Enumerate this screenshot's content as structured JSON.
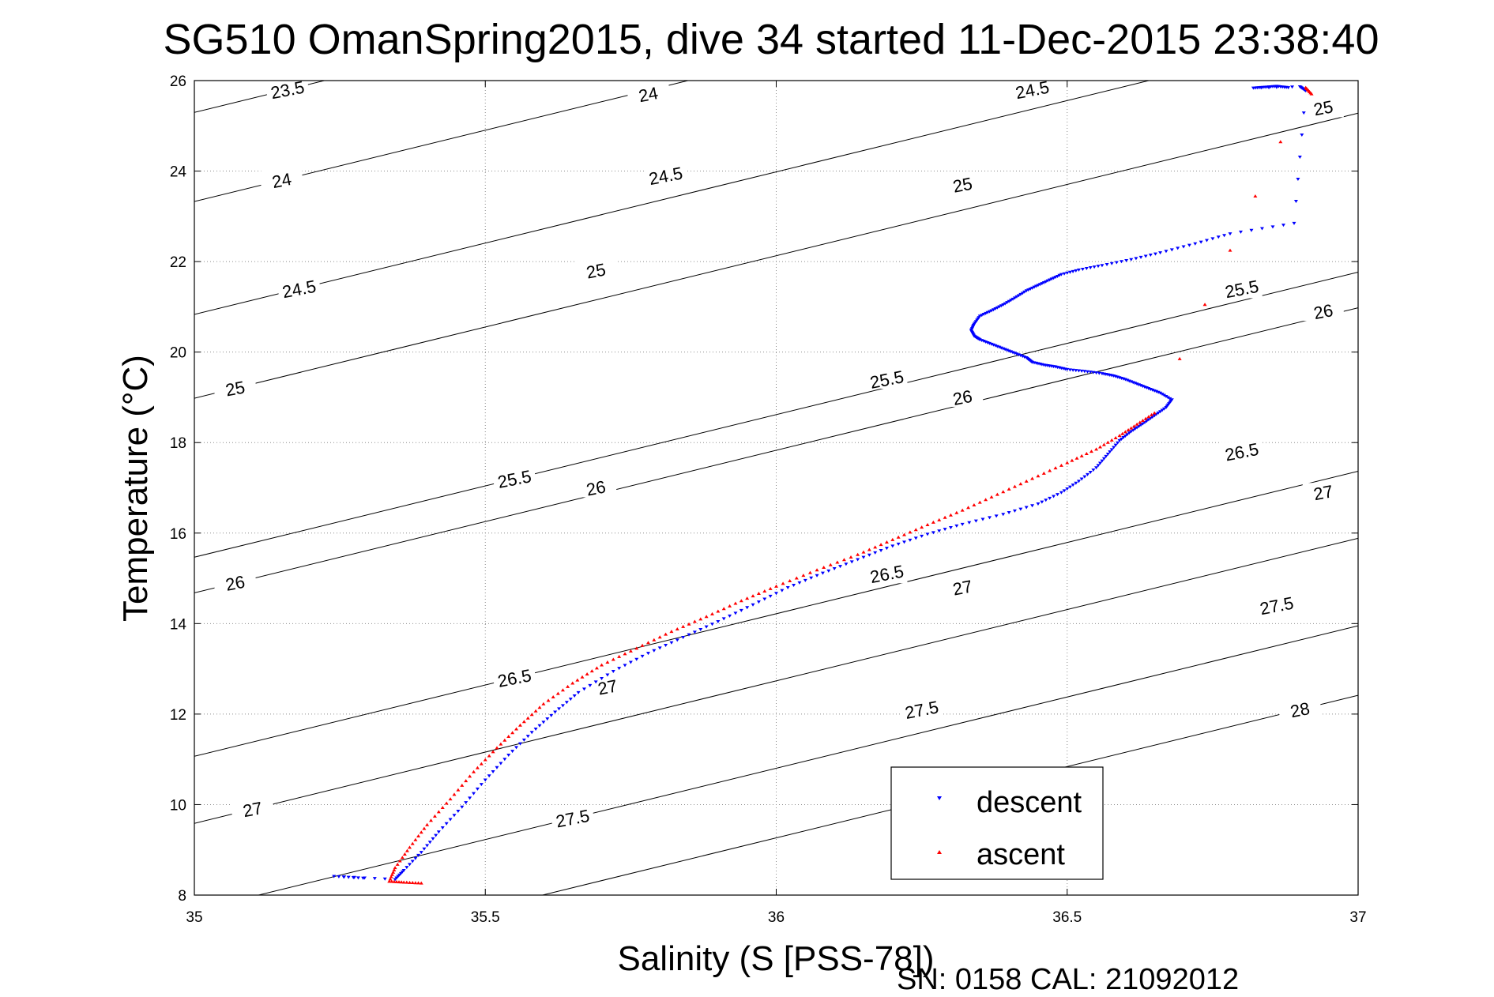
{
  "chart_data": {
    "type": "scatter",
    "title": "SG510 OmanSpring2015, dive 34 started 11-Dec-2015 23:38:40",
    "xlabel": "Salinity (S [PSS-78])",
    "ylabel": "Temperature (°C)",
    "footer": "SN: 0158  CAL: 21092012",
    "xlim": [
      35,
      37
    ],
    "ylim": [
      8,
      26
    ],
    "xticks": [
      35,
      35.5,
      36,
      36.5,
      37
    ],
    "xtick_labels": [
      "35",
      "35.5",
      "36",
      "36.5",
      "37"
    ],
    "yticks": [
      8,
      10,
      12,
      14,
      16,
      18,
      20,
      22,
      24,
      26
    ],
    "ytick_labels": [
      "8",
      "10",
      "12",
      "14",
      "16",
      "18",
      "20",
      "22",
      "24",
      "26"
    ],
    "grid": true,
    "legend_position": "bottom-right",
    "series": [
      {
        "name": "descent",
        "color": "#0000ff",
        "marker": "triangle-down",
        "points": [
          [
            36.88,
            25.85
          ],
          [
            36.86,
            25.88
          ],
          [
            36.84,
            25.86
          ],
          [
            36.82,
            25.84
          ],
          [
            36.9,
            25.87
          ],
          [
            36.91,
            25.78
          ],
          [
            36.89,
            22.85
          ],
          [
            36.78,
            22.62
          ],
          [
            36.72,
            22.4
          ],
          [
            36.66,
            22.2
          ],
          [
            36.61,
            22.05
          ],
          [
            36.56,
            21.92
          ],
          [
            36.52,
            21.82
          ],
          [
            36.49,
            21.72
          ],
          [
            36.47,
            21.6
          ],
          [
            36.45,
            21.48
          ],
          [
            36.43,
            21.36
          ],
          [
            36.41,
            21.2
          ],
          [
            36.39,
            21.05
          ],
          [
            36.37,
            20.92
          ],
          [
            36.35,
            20.8
          ],
          [
            36.34,
            20.62
          ],
          [
            36.335,
            20.48
          ],
          [
            36.34,
            20.36
          ],
          [
            36.35,
            20.28
          ],
          [
            36.37,
            20.18
          ],
          [
            36.39,
            20.08
          ],
          [
            36.41,
            19.98
          ],
          [
            36.43,
            19.88
          ],
          [
            36.44,
            19.78
          ],
          [
            36.46,
            19.72
          ],
          [
            36.48,
            19.68
          ],
          [
            36.5,
            19.62
          ],
          [
            36.53,
            19.58
          ],
          [
            36.56,
            19.53
          ],
          [
            36.58,
            19.48
          ],
          [
            36.6,
            19.4
          ],
          [
            36.62,
            19.3
          ],
          [
            36.64,
            19.2
          ],
          [
            36.66,
            19.1
          ],
          [
            36.68,
            18.95
          ],
          [
            36.67,
            18.78
          ],
          [
            36.65,
            18.6
          ],
          [
            36.63,
            18.42
          ],
          [
            36.61,
            18.25
          ],
          [
            36.59,
            18.05
          ],
          [
            36.57,
            17.75
          ],
          [
            36.55,
            17.45
          ],
          [
            36.52,
            17.15
          ],
          [
            36.49,
            16.9
          ],
          [
            36.45,
            16.65
          ],
          [
            36.39,
            16.42
          ],
          [
            36.32,
            16.2
          ],
          [
            36.26,
            15.98
          ],
          [
            36.2,
            15.72
          ],
          [
            36.14,
            15.42
          ],
          [
            36.08,
            15.12
          ],
          [
            36.02,
            14.8
          ],
          [
            35.96,
            14.42
          ],
          [
            35.9,
            14.05
          ],
          [
            35.84,
            13.7
          ],
          [
            35.78,
            13.35
          ],
          [
            35.72,
            12.95
          ],
          [
            35.66,
            12.48
          ],
          [
            35.62,
            12.05
          ],
          [
            35.58,
            11.6
          ],
          [
            35.54,
            11.1
          ],
          [
            35.5,
            10.55
          ],
          [
            35.46,
            9.95
          ],
          [
            35.42,
            9.4
          ],
          [
            35.39,
            8.95
          ],
          [
            35.36,
            8.55
          ],
          [
            35.345,
            8.35
          ],
          [
            35.24,
            8.42
          ],
          [
            35.29,
            8.38
          ]
        ]
      },
      {
        "name": "ascent",
        "color": "#ff0000",
        "marker": "triangle-up",
        "points": [
          [
            36.92,
            25.7
          ],
          [
            36.91,
            25.84
          ],
          [
            36.65,
            18.65
          ],
          [
            36.62,
            18.4
          ],
          [
            36.59,
            18.15
          ],
          [
            36.55,
            17.85
          ],
          [
            36.5,
            17.55
          ],
          [
            36.44,
            17.2
          ],
          [
            36.38,
            16.85
          ],
          [
            36.32,
            16.5
          ],
          [
            36.26,
            16.18
          ],
          [
            36.2,
            15.85
          ],
          [
            36.14,
            15.52
          ],
          [
            36.07,
            15.18
          ],
          [
            36.0,
            14.82
          ],
          [
            35.94,
            14.5
          ],
          [
            35.88,
            14.15
          ],
          [
            35.82,
            13.82
          ],
          [
            35.76,
            13.45
          ],
          [
            35.7,
            13.08
          ],
          [
            35.65,
            12.68
          ],
          [
            35.6,
            12.22
          ],
          [
            35.56,
            11.75
          ],
          [
            35.52,
            11.25
          ],
          [
            35.48,
            10.72
          ],
          [
            35.44,
            10.12
          ],
          [
            35.4,
            9.55
          ],
          [
            35.37,
            9.05
          ],
          [
            35.345,
            8.6
          ],
          [
            35.335,
            8.3
          ],
          [
            35.36,
            8.28
          ],
          [
            35.39,
            8.26
          ]
        ]
      }
    ],
    "contours": [
      {
        "level": "23.5",
        "labels": [
          [
            35.16,
            25.8
          ]
        ]
      },
      {
        "level": "24",
        "labels": [
          [
            35.15,
            23.8
          ],
          [
            35.78,
            25.7
          ]
        ]
      },
      {
        "level": "24.5",
        "labels": [
          [
            35.18,
            21.4
          ],
          [
            35.81,
            23.9
          ],
          [
            36.44,
            25.8
          ]
        ]
      },
      {
        "level": "25",
        "labels": [
          [
            35.07,
            19.2
          ],
          [
            35.69,
            21.8
          ],
          [
            36.32,
            23.7
          ],
          [
            36.94,
            25.4
          ]
        ]
      },
      {
        "level": "25.5",
        "labels": [
          [
            35.55,
            17.2
          ],
          [
            36.19,
            19.4
          ],
          [
            36.8,
            21.4
          ]
        ]
      },
      {
        "level": "26",
        "labels": [
          [
            35.07,
            14.9
          ],
          [
            35.69,
            17.0
          ],
          [
            36.32,
            19.0
          ],
          [
            36.94,
            20.9
          ]
        ]
      },
      {
        "level": "26.5",
        "labels": [
          [
            35.55,
            12.8
          ],
          [
            36.19,
            15.1
          ],
          [
            36.8,
            17.8
          ]
        ]
      },
      {
        "level": "27",
        "labels": [
          [
            35.1,
            9.9
          ],
          [
            35.71,
            12.6
          ],
          [
            36.32,
            14.8
          ],
          [
            36.94,
            16.9
          ]
        ]
      },
      {
        "level": "27.5",
        "labels": [
          [
            35.65,
            9.7
          ],
          [
            36.25,
            12.1
          ],
          [
            36.86,
            14.4
          ]
        ]
      },
      {
        "level": "28",
        "labels": [
          [
            36.9,
            12.1
          ]
        ]
      }
    ]
  },
  "legend": {
    "descent_label": "descent",
    "ascent_label": "ascent"
  }
}
